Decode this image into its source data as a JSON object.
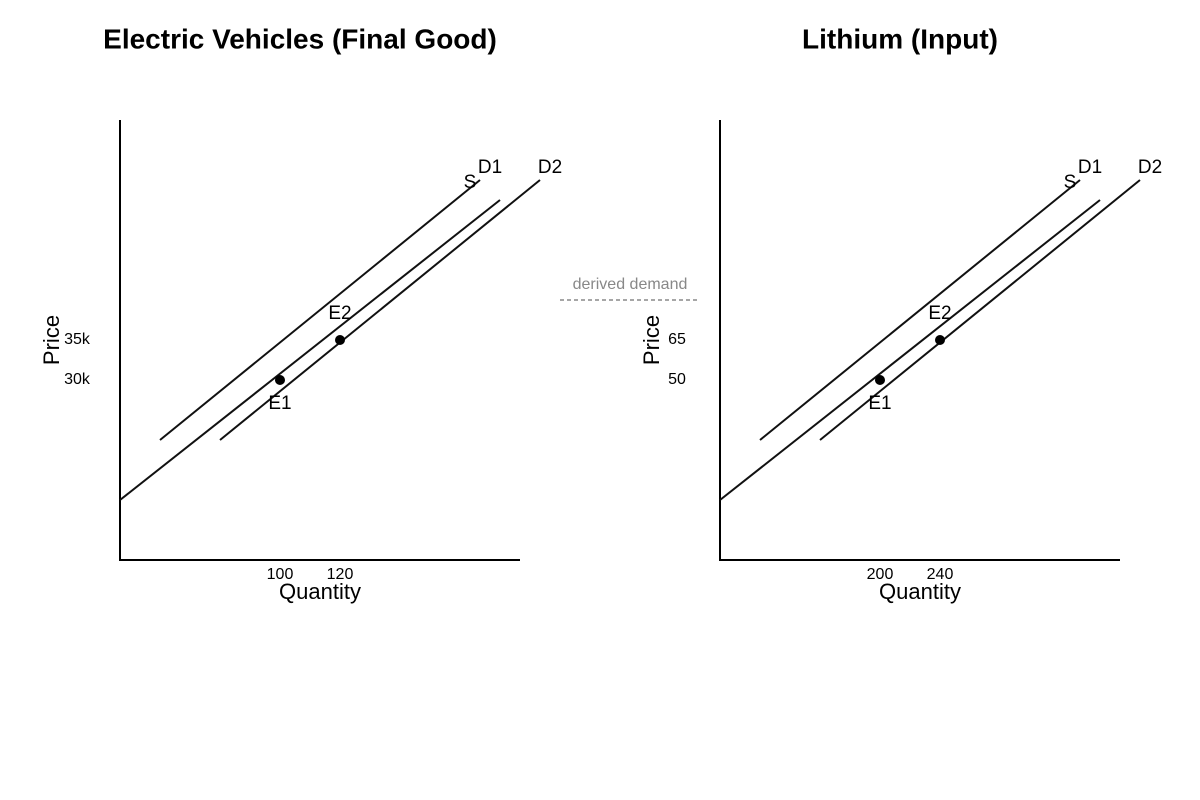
{
  "panels": [
    {
      "title": "Electric Vehicles (Final Good)",
      "y_axis_label": "Price",
      "x_axis_label": "Quantity",
      "y_tick_labels": [
        "35k",
        "30k"
      ],
      "x_tick_labels": [
        "100",
        "120"
      ],
      "curve_labels": [
        "S",
        "D1",
        "D2"
      ],
      "point_labels": [
        "E1",
        "E2"
      ]
    },
    {
      "title": "Lithium (Input)",
      "y_axis_label": "Price",
      "x_axis_label": "Quantity",
      "y_tick_labels": [
        "65",
        "50"
      ],
      "x_tick_labels": [
        "200",
        "240"
      ],
      "curve_labels": [
        "S",
        "D1",
        "D2"
      ],
      "point_labels": [
        "E1",
        "E2"
      ]
    }
  ],
  "annotation": "derived demand"
}
